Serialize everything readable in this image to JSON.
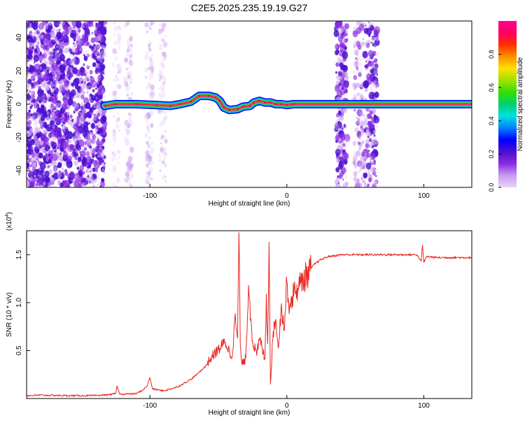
{
  "chart_data": [
    {
      "type": "heatmap",
      "title": "C2E5.2025.235.19.19.G27",
      "xlabel": "Height of straight line (km)",
      "ylabel": "Frequency (Hz)",
      "xlim": [
        -190,
        135
      ],
      "ylim": [
        -50,
        50
      ],
      "xticks": [
        -100,
        0,
        100
      ],
      "xtick_labels": [
        "-100",
        "0",
        "100"
      ],
      "yticks": [
        -40,
        -20,
        0,
        20,
        40
      ],
      "ytick_labels": [
        "-40",
        "-20",
        "0",
        "20",
        "40"
      ],
      "colorbar": {
        "label": "Normalized spectral amplitude",
        "range": [
          0,
          1
        ],
        "ticks": [
          0.0,
          0.2,
          0.4,
          0.6,
          0.8
        ],
        "tick_labels": [
          "0.0",
          "0.2",
          "0.4",
          "0.6",
          "0.8"
        ],
        "colors": [
          "#e8d4f8",
          "#c89cf0",
          "#8a2be2",
          "#4b0fd0",
          "#0000ff",
          "#0080ff",
          "#00e0e0",
          "#00d070",
          "#30e000",
          "#a0e000",
          "#ffe000",
          "#ff9000",
          "#ff3000",
          "#ff0060",
          "#ff0090"
        ]
      },
      "ridge": {
        "x": [
          -133,
          -125,
          -110,
          -95,
          -85,
          -78,
          -70,
          -64,
          -57,
          -52,
          -49,
          -46,
          -42,
          -36,
          -32,
          -27,
          -24,
          -20,
          -16,
          -12,
          -8,
          -4,
          0,
          5,
          135
        ],
        "freq": [
          -1,
          0,
          0,
          -0.5,
          -1,
          0,
          1.5,
          5,
          5,
          4,
          2,
          -2,
          -3.5,
          -3,
          -1.5,
          -1,
          1,
          2,
          1,
          1,
          0,
          0,
          -0.5,
          0,
          0
        ]
      },
      "clutter_regions": [
        {
          "x": [
            -190,
            -133
          ],
          "intensity": 1.0
        },
        {
          "x": [
            -127,
            -122
          ],
          "intensity": 0.25
        },
        {
          "x": [
            -118,
            -113
          ],
          "intensity": 0.35
        },
        {
          "x": [
            -103,
            -98
          ],
          "intensity": 0.4
        },
        {
          "x": [
            -93,
            -88
          ],
          "intensity": 0.3
        },
        {
          "x": [
            36,
            44
          ],
          "intensity": 0.9
        },
        {
          "x": [
            49,
            56
          ],
          "intensity": 0.55
        },
        {
          "x": [
            57,
            66
          ],
          "intensity": 0.85
        }
      ]
    },
    {
      "type": "line",
      "xlabel": "Height of straight line (km)",
      "ylabel": "SNR (10 * v/v)",
      "yscale_label": "(x10",
      "yscale_exponent": "4",
      "xlim": [
        -190,
        135
      ],
      "ylim": [
        0,
        17500
      ],
      "xticks": [
        -100,
        0,
        100
      ],
      "xtick_labels": [
        "-100",
        "0",
        "100"
      ],
      "yticks": [
        5000,
        10000,
        15000
      ],
      "ytick_labels": [
        "0.5",
        "1.0",
        "1.5"
      ],
      "series": [
        {
          "name": "SNR",
          "color": "#e8251f",
          "x": [
            -190,
            -180,
            -160,
            -140,
            -130,
            -125,
            -124,
            -122,
            -110,
            -105,
            -102,
            -100,
            -98,
            -90,
            -80,
            -70,
            -65,
            -60,
            -55,
            -50,
            -45,
            -40,
            -38,
            -36,
            -35,
            -34,
            -33,
            -32,
            -30,
            -28,
            -25,
            -22,
            -20,
            -18,
            -16,
            -15,
            -14,
            -13,
            -12,
            -10,
            -8,
            -6,
            -4,
            -2,
            0,
            2,
            4,
            6,
            8,
            10,
            15,
            20,
            25,
            30,
            35,
            40,
            50,
            60,
            70,
            80,
            90,
            95,
            98,
            99,
            100,
            102,
            110,
            120,
            135
          ],
          "values": [
            300,
            350,
            300,
            300,
            400,
            500,
            1300,
            450,
            500,
            900,
            1300,
            2200,
            1000,
            800,
            1200,
            2000,
            2600,
            3300,
            4300,
            5100,
            5900,
            4300,
            8400,
            6300,
            17300,
            5500,
            3800,
            3600,
            4200,
            11800,
            6000,
            4500,
            6300,
            5200,
            4100,
            10900,
            5700,
            16300,
            1500,
            7000,
            8200,
            5400,
            9900,
            7100,
            12200,
            9500,
            10600,
            11300,
            11500,
            12000,
            13000,
            14000,
            14500,
            14800,
            14900,
            15000,
            15000,
            15000,
            15000,
            15000,
            15000,
            15000,
            14300,
            16000,
            14200,
            14800,
            14700,
            14700,
            14700
          ]
        }
      ]
    }
  ]
}
